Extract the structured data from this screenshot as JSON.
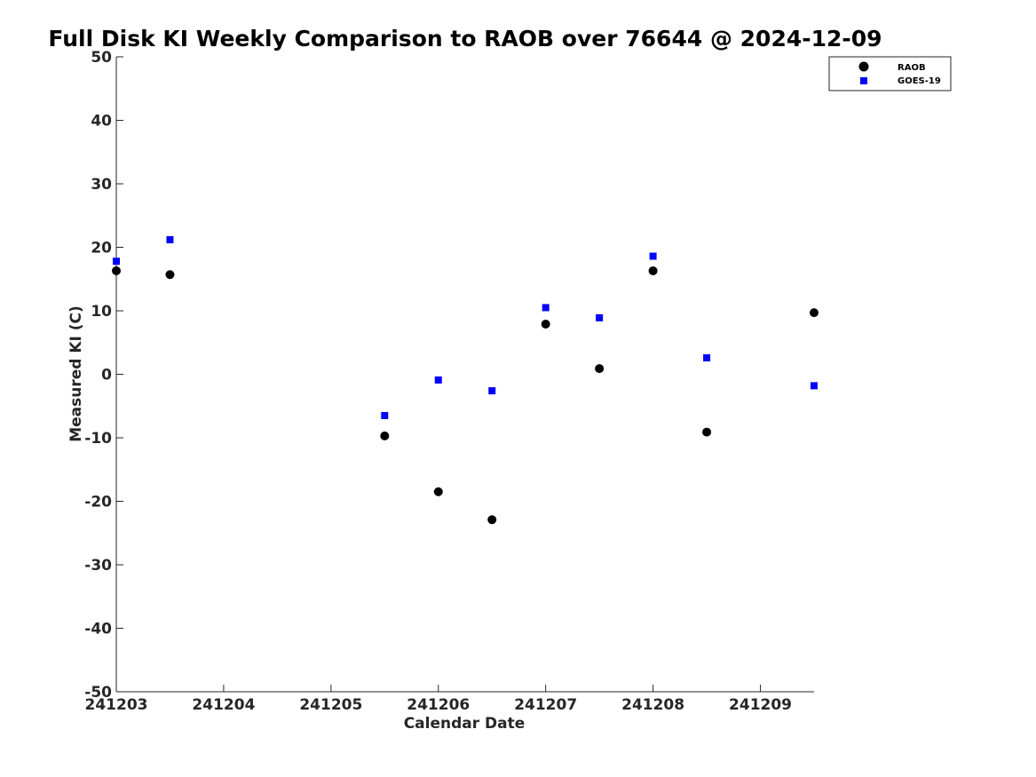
{
  "chart_data": {
    "type": "scatter",
    "title": "Full Disk KI Weekly Comparison to RAOB over 76644 @ 2024-12-09",
    "xlabel": "Calendar Date",
    "ylabel": "Measured KI (C)",
    "x_tick_values": [
      241203,
      241204,
      241205,
      241206,
      241207,
      241208,
      241209
    ],
    "x_tick_labels": [
      "241203",
      "241204",
      "241205",
      "241206",
      "241207",
      "241208",
      "241209"
    ],
    "xlim": [
      241203,
      241209.5
    ],
    "y_ticks": [
      50,
      40,
      30,
      20,
      10,
      0,
      -10,
      -20,
      -30,
      -40,
      -50
    ],
    "ylim": [
      -50,
      50
    ],
    "grid": false,
    "legend_position": "top-right",
    "series": [
      {
        "name": "RAOB",
        "marker": "circle",
        "color": "#000000",
        "x": [
          241203.0,
          241203.5,
          241205.5,
          241206.0,
          241206.5,
          241207.0,
          241207.5,
          241208.0,
          241208.5,
          241209.5
        ],
        "y": [
          16.3,
          15.7,
          -9.7,
          -18.5,
          -22.9,
          7.9,
          0.9,
          16.3,
          -9.1,
          9.7
        ]
      },
      {
        "name": "GOES-19",
        "marker": "square",
        "color": "#0000ff",
        "x": [
          241203.0,
          241203.5,
          241205.5,
          241206.0,
          241206.5,
          241207.0,
          241207.5,
          241208.0,
          241208.5,
          241209.5
        ],
        "y": [
          17.8,
          21.2,
          -6.5,
          -0.9,
          -2.6,
          10.5,
          8.9,
          18.6,
          2.6,
          -1.8
        ]
      }
    ]
  }
}
